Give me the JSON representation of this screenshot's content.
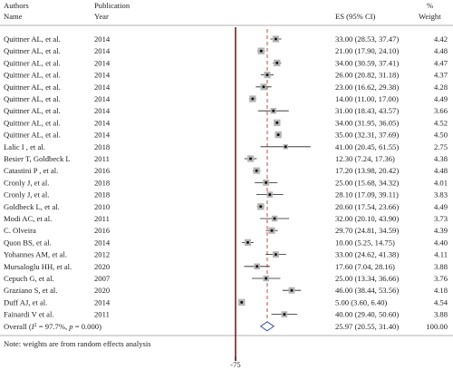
{
  "header": {
    "authors": "Authors",
    "name": "Name",
    "publication": "Publication",
    "year": "Year",
    "es": "ES (95% CI)",
    "pct": "%",
    "weight": "Weight"
  },
  "note": "Note: weights are from random effects analysis",
  "colors": {
    "null_line": "#8b1a1a",
    "overall_line": "#c0392b",
    "diamond": "#3a4fa8"
  },
  "chart_data": {
    "type": "forest",
    "xlim": [
      0,
      75
    ],
    "null_value": 0,
    "overall_value": 25.97,
    "axis_tick_label": "-75",
    "studies": [
      {
        "author": "Quittner AL, et al.",
        "year": "2014",
        "es": 33.0,
        "lo": 28.53,
        "hi": 37.47,
        "ci_text": "33.00 (28.53, 37.47)",
        "weight": "4.42"
      },
      {
        "author": "Quittner AL, et al.",
        "year": "2014",
        "es": 21.0,
        "lo": 17.9,
        "hi": 24.1,
        "ci_text": "21.00 (17.90, 24.10)",
        "weight": "4.48"
      },
      {
        "author": "Quittner AL, et al.",
        "year": "2014",
        "es": 34.0,
        "lo": 30.59,
        "hi": 37.41,
        "ci_text": "34.00 (30.59, 37.41)",
        "weight": "4.47"
      },
      {
        "author": "Quittner AL, et al.",
        "year": "2014",
        "es": 26.0,
        "lo": 20.82,
        "hi": 31.18,
        "ci_text": "26.00 (20.82, 31.18)",
        "weight": "4.37"
      },
      {
        "author": "Quittner AL, et al.",
        "year": "2014",
        "es": 23.0,
        "lo": 16.62,
        "hi": 29.38,
        "ci_text": "23.00 (16.62, 29.38)",
        "weight": "4.28"
      },
      {
        "author": "Quittner AL, et al.",
        "year": "2014",
        "es": 14.0,
        "lo": 11.0,
        "hi": 17.0,
        "ci_text": "14.00 (11.00, 17.00)",
        "weight": "4.49"
      },
      {
        "author": "Quittner AL, et al.",
        "year": "2014",
        "es": 31.0,
        "lo": 18.43,
        "hi": 43.57,
        "ci_text": "31.00 (18.43, 43.57)",
        "weight": "3.66"
      },
      {
        "author": "Quittner AL, et al.",
        "year": "2014",
        "es": 34.0,
        "lo": 31.95,
        "hi": 36.05,
        "ci_text": "34.00 (31.95, 36.05)",
        "weight": "4.52"
      },
      {
        "author": "Quittner AL, et al.",
        "year": "2014",
        "es": 35.0,
        "lo": 32.31,
        "hi": 37.69,
        "ci_text": "35.00 (32.31, 37.69)",
        "weight": "4.50"
      },
      {
        "author": "Lalic I , et al.",
        "year": "2018",
        "es": 41.0,
        "lo": 20.45,
        "hi": 61.55,
        "ci_text": "41.00 (20.45, 61.55)",
        "weight": "2.75"
      },
      {
        "author": "Besier T, Goldbeck L",
        "year": "2011",
        "es": 12.3,
        "lo": 7.24,
        "hi": 17.36,
        "ci_text": "12.30 (7.24, 17.36)",
        "weight": "4.38"
      },
      {
        "author": "Catastini P , et al.",
        "year": "2016",
        "es": 17.2,
        "lo": 13.98,
        "hi": 20.42,
        "ci_text": "17.20 (13.98, 20.42)",
        "weight": "4.48"
      },
      {
        "author": "Cronly J, et al.",
        "year": "2018",
        "es": 25.0,
        "lo": 15.68,
        "hi": 34.32,
        "ci_text": "25.00 (15.68, 34.32)",
        "weight": "4.01"
      },
      {
        "author": "Cronly J, et al.",
        "year": "2018",
        "es": 28.1,
        "lo": 17.09,
        "hi": 39.11,
        "ci_text": "28.10 (17.09, 39.11)",
        "weight": "3.83"
      },
      {
        "author": "Goldbeck L, et al.",
        "year": "2010",
        "es": 20.6,
        "lo": 17.54,
        "hi": 23.66,
        "ci_text": "20.60 (17.54, 23.66)",
        "weight": "4.49"
      },
      {
        "author": "Modi AC, et al.",
        "year": "2011",
        "es": 32.0,
        "lo": 20.1,
        "hi": 43.9,
        "ci_text": "32.00 (20.10, 43.90)",
        "weight": "3.73"
      },
      {
        "author": "C. Olveira",
        "year": "2016",
        "es": 29.7,
        "lo": 24.81,
        "hi": 34.59,
        "ci_text": "29.70 (24.81, 34.59)",
        "weight": "4.39"
      },
      {
        "author": "Quon BS, et al.",
        "year": "2014",
        "es": 10.0,
        "lo": 5.25,
        "hi": 14.75,
        "ci_text": "10.00 (5.25, 14.75)",
        "weight": "4.40"
      },
      {
        "author": "Yohannes AM, et al.",
        "year": "2012",
        "es": 33.0,
        "lo": 24.62,
        "hi": 41.38,
        "ci_text": "33.00 (24.62, 41.38)",
        "weight": "4.11"
      },
      {
        "author": "Mursaloglu HH, et al.",
        "year": "2020",
        "es": 17.6,
        "lo": 7.04,
        "hi": 28.16,
        "ci_text": "17.60 (7.04, 28.16)",
        "weight": "3.88"
      },
      {
        "author": "Cepuch G, et al.",
        "year": "2007",
        "es": 25.0,
        "lo": 13.34,
        "hi": 36.66,
        "ci_text": "25.00 (13.34, 36.66)",
        "weight": "3.76"
      },
      {
        "author": "Graziano S, et al.",
        "year": "2020",
        "es": 46.0,
        "lo": 38.44,
        "hi": 53.56,
        "ci_text": "46.00 (38.44, 53.56)",
        "weight": "4.18"
      },
      {
        "author": "Duff AJ, et al.",
        "year": "2014",
        "es": 5.0,
        "lo": 3.6,
        "hi": 6.4,
        "ci_text": "5.00 (3.60, 6.40)",
        "weight": "4.54"
      },
      {
        "author": "Fainardi V et al.",
        "year": "2011",
        "es": 40.0,
        "lo": 29.4,
        "hi": 50.6,
        "ci_text": "40.00 (29.40, 50.60)",
        "weight": "3.88"
      }
    ],
    "overall": {
      "label_prefix": "Overall (",
      "label_stat": "I",
      "label_sup": "2",
      "label_mid": " = 97.7%, ",
      "label_p": "p",
      "label_end": " = 0.000)",
      "es": 25.97,
      "lo": 20.55,
      "hi": 31.4,
      "ci_text": "25.97 (20.55, 31.40)",
      "weight": "100.00"
    }
  }
}
